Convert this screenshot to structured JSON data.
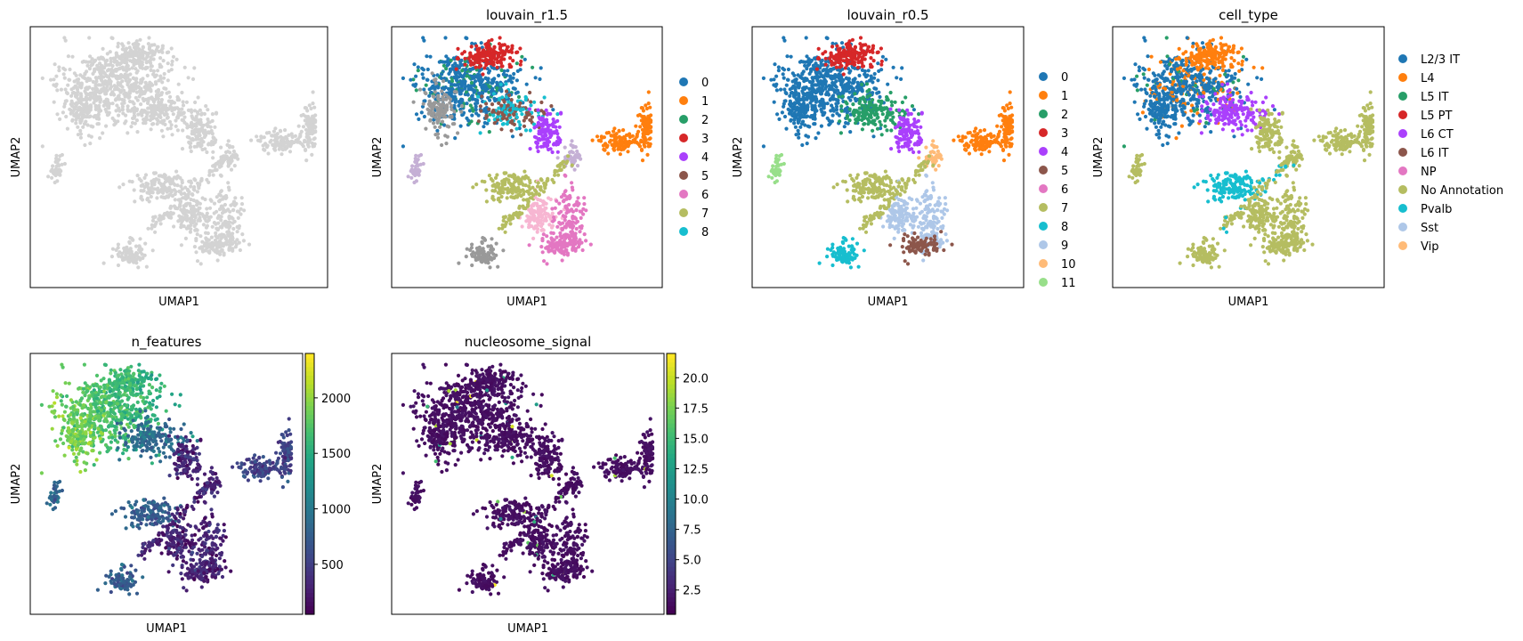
{
  "chart_data": [
    {
      "type": "scatter",
      "title": "",
      "xlabel": "UMAP1",
      "ylabel": "UMAP2",
      "color_mode": "uniform",
      "point_color": "#d3d3d3",
      "legend": null
    },
    {
      "type": "scatter",
      "title": "louvain_r1.5",
      "xlabel": "UMAP1",
      "ylabel": "UMAP2",
      "color_mode": "categorical",
      "legend": {
        "placement": "right",
        "items": [
          {
            "label": "0",
            "color": "#1f77b4"
          },
          {
            "label": "1",
            "color": "#ff7f0e"
          },
          {
            "label": "2",
            "color": "#279e68"
          },
          {
            "label": "3",
            "color": "#d62728"
          },
          {
            "label": "4",
            "color": "#aa40fc"
          },
          {
            "label": "5",
            "color": "#8c564b"
          },
          {
            "label": "6",
            "color": "#e377c2"
          },
          {
            "label": "7",
            "color": "#b5bd61"
          },
          {
            "label": "8",
            "color": "#17becf"
          }
        ]
      }
    },
    {
      "type": "scatter",
      "title": "louvain_r0.5",
      "xlabel": "UMAP1",
      "ylabel": "UMAP2",
      "color_mode": "categorical",
      "legend": {
        "placement": "right",
        "items": [
          {
            "label": "0",
            "color": "#1f77b4"
          },
          {
            "label": "1",
            "color": "#ff7f0e"
          },
          {
            "label": "2",
            "color": "#279e68"
          },
          {
            "label": "3",
            "color": "#d62728"
          },
          {
            "label": "4",
            "color": "#aa40fc"
          },
          {
            "label": "5",
            "color": "#8c564b"
          },
          {
            "label": "6",
            "color": "#e377c2"
          },
          {
            "label": "7",
            "color": "#b5bd61"
          },
          {
            "label": "8",
            "color": "#17becf"
          },
          {
            "label": "9",
            "color": "#aec7e8"
          },
          {
            "label": "10",
            "color": "#ffbb78"
          },
          {
            "label": "11",
            "color": "#98df8a"
          }
        ]
      }
    },
    {
      "type": "scatter",
      "title": "cell_type",
      "xlabel": "UMAP1",
      "ylabel": "UMAP2",
      "color_mode": "categorical",
      "legend": {
        "placement": "right",
        "items": [
          {
            "label": "L2/3 IT",
            "color": "#1f77b4"
          },
          {
            "label": "L4",
            "color": "#ff7f0e"
          },
          {
            "label": "L5 IT",
            "color": "#279e68"
          },
          {
            "label": "L5 PT",
            "color": "#d62728"
          },
          {
            "label": "L6 CT",
            "color": "#aa40fc"
          },
          {
            "label": "L6 IT",
            "color": "#8c564b"
          },
          {
            "label": "NP",
            "color": "#e377c2"
          },
          {
            "label": "No Annotation",
            "color": "#b5bd61"
          },
          {
            "label": "Pvalb",
            "color": "#17becf"
          },
          {
            "label": "Sst",
            "color": "#aec7e8"
          },
          {
            "label": "Vip",
            "color": "#ffbb78"
          }
        ]
      }
    },
    {
      "type": "scatter",
      "title": "n_features",
      "xlabel": "UMAP1",
      "ylabel": "UMAP2",
      "color_mode": "continuous",
      "colormap": "viridis",
      "colorbar": {
        "min": 50,
        "max": 2400,
        "ticks": [
          "500",
          "1000",
          "1500",
          "2000"
        ],
        "tick_values": [
          500,
          1000,
          1500,
          2000
        ]
      }
    },
    {
      "type": "scatter",
      "title": "nucleosome_signal",
      "xlabel": "UMAP1",
      "ylabel": "UMAP2",
      "color_mode": "continuous",
      "colormap": "viridis",
      "colorbar": {
        "min": 0.5,
        "max": 22.0,
        "ticks": [
          "2.5",
          "5.0",
          "7.5",
          "10.0",
          "12.5",
          "15.0",
          "17.5",
          "20.0"
        ],
        "tick_values": [
          2.5,
          5.0,
          7.5,
          10.0,
          12.5,
          15.0,
          17.5,
          20.0
        ]
      }
    }
  ]
}
